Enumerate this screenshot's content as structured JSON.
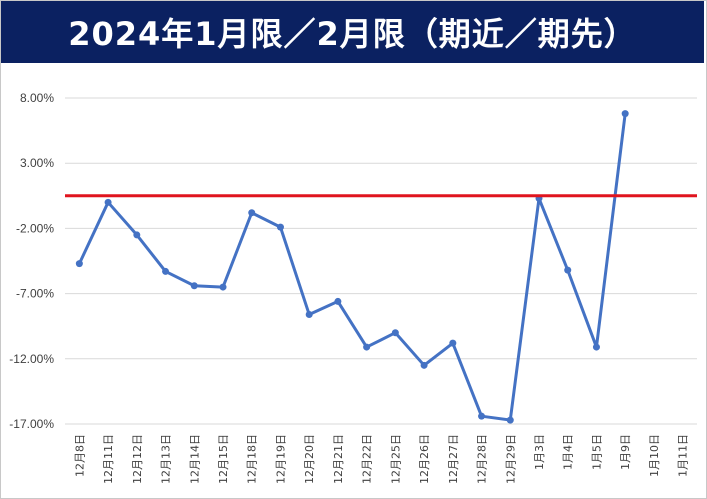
{
  "header": {
    "title": "2024年1月限／2月限（期近／期先）",
    "background": "#0b2161",
    "text_color": "#ffffff"
  },
  "chart_data": {
    "type": "line",
    "title": "2024年1月限／2月限（期近／期先）",
    "xlabel": "",
    "ylabel": "",
    "categories": [
      "12月8日",
      "12月11日",
      "12月12日",
      "12月13日",
      "12月14日",
      "12月15日",
      "12月18日",
      "12月19日",
      "12月20日",
      "12月21日",
      "12月22日",
      "12月25日",
      "12月26日",
      "12月27日",
      "12月28日",
      "12月29日",
      "1月3日",
      "1月4日",
      "1月5日",
      "1月9日",
      "1月10日",
      "1月11日"
    ],
    "y_ticks": [
      "8.00%",
      "3.00%",
      "-2.00%",
      "-7.00%",
      "-12.00%",
      "-17.00%"
    ],
    "ylim": [
      -17,
      8
    ],
    "series": [
      {
        "name": "",
        "color": "#4472c4",
        "values": [
          -4.7,
          0.0,
          -2.5,
          -5.3,
          -6.4,
          -6.5,
          -0.8,
          -1.9,
          -8.6,
          -7.6,
          -11.1,
          -10.0,
          -12.5,
          -10.8,
          -16.4,
          -16.7,
          0.3,
          -5.2,
          -11.1,
          6.8,
          null,
          null
        ]
      }
    ],
    "reference_line": {
      "value": 0.5,
      "color": "#e0141e"
    },
    "grid": true,
    "legend": "none"
  }
}
